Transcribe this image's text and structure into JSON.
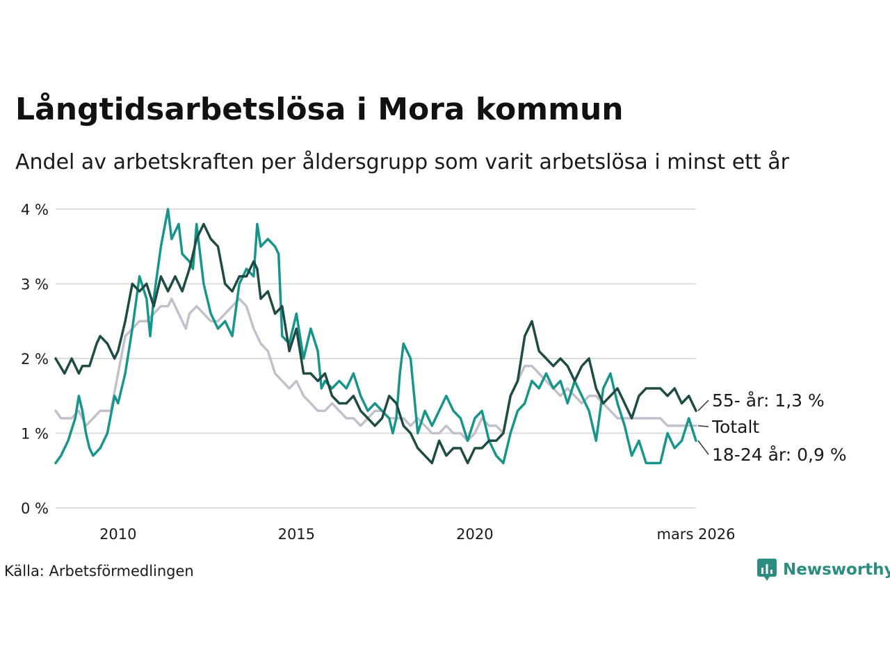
{
  "header": {
    "title": "Långtidsarbetslösa i Mora kommun",
    "subtitle": "Andel av arbetskraften per åldersgrupp som varit arbetslösa i minst ett år"
  },
  "footer": {
    "source": "Källa: Arbetsförmedlingen",
    "brand": "Newsworthy"
  },
  "colors": {
    "s55": "#1f4b45",
    "total": "#c2c0cb",
    "s1824": "#17958a",
    "grid": "#dddddd"
  },
  "chart_data": {
    "type": "line",
    "title": "Långtidsarbetslösa i Mora kommun",
    "ylabel": "",
    "xlabel": "",
    "ylim": [
      0,
      4
    ],
    "xlim": [
      2008.25,
      2026.2
    ],
    "y_ticks": [
      {
        "value": 0,
        "label": "0 %"
      },
      {
        "value": 1,
        "label": "1 %"
      },
      {
        "value": 2,
        "label": "2 %"
      },
      {
        "value": 3,
        "label": "3 %"
      },
      {
        "value": 4,
        "label": "4 %"
      }
    ],
    "x_ticks": [
      {
        "value": 2010,
        "label": "2010"
      },
      {
        "value": 2015,
        "label": "2015"
      },
      {
        "value": 2020,
        "label": "2020"
      },
      {
        "value": 2026.2,
        "label": "mars 2026"
      }
    ],
    "series": [
      {
        "name": "Totalt",
        "key": "total",
        "end_label": "Totalt",
        "points": [
          [
            2008.25,
            1.3
          ],
          [
            2008.4,
            1.2
          ],
          [
            2008.7,
            1.2
          ],
          [
            2008.9,
            1.3
          ],
          [
            2009.1,
            1.1
          ],
          [
            2009.3,
            1.2
          ],
          [
            2009.5,
            1.3
          ],
          [
            2009.8,
            1.3
          ],
          [
            2010.0,
            1.8
          ],
          [
            2010.2,
            2.3
          ],
          [
            2010.4,
            2.4
          ],
          [
            2010.6,
            2.5
          ],
          [
            2010.8,
            2.5
          ],
          [
            2011.0,
            2.6
          ],
          [
            2011.2,
            2.7
          ],
          [
            2011.4,
            2.7
          ],
          [
            2011.5,
            2.8
          ],
          [
            2011.7,
            2.6
          ],
          [
            2011.9,
            2.4
          ],
          [
            2012.0,
            2.6
          ],
          [
            2012.2,
            2.7
          ],
          [
            2012.4,
            2.6
          ],
          [
            2012.6,
            2.5
          ],
          [
            2012.8,
            2.5
          ],
          [
            2013.0,
            2.6
          ],
          [
            2013.2,
            2.7
          ],
          [
            2013.4,
            2.8
          ],
          [
            2013.6,
            2.7
          ],
          [
            2013.8,
            2.4
          ],
          [
            2014.0,
            2.2
          ],
          [
            2014.2,
            2.1
          ],
          [
            2014.4,
            1.8
          ],
          [
            2014.6,
            1.7
          ],
          [
            2014.8,
            1.6
          ],
          [
            2015.0,
            1.7
          ],
          [
            2015.2,
            1.5
          ],
          [
            2015.4,
            1.4
          ],
          [
            2015.6,
            1.3
          ],
          [
            2015.8,
            1.3
          ],
          [
            2016.0,
            1.4
          ],
          [
            2016.2,
            1.3
          ],
          [
            2016.4,
            1.2
          ],
          [
            2016.6,
            1.2
          ],
          [
            2016.8,
            1.1
          ],
          [
            2017.0,
            1.2
          ],
          [
            2017.2,
            1.3
          ],
          [
            2017.4,
            1.3
          ],
          [
            2017.6,
            1.2
          ],
          [
            2017.8,
            1.2
          ],
          [
            2018.0,
            1.2
          ],
          [
            2018.2,
            1.1
          ],
          [
            2018.4,
            1.2
          ],
          [
            2018.6,
            1.1
          ],
          [
            2018.8,
            1.0
          ],
          [
            2019.0,
            1.0
          ],
          [
            2019.2,
            1.1
          ],
          [
            2019.4,
            1.0
          ],
          [
            2019.6,
            1.0
          ],
          [
            2019.8,
            0.9
          ],
          [
            2020.0,
            1.0
          ],
          [
            2020.2,
            1.2
          ],
          [
            2020.4,
            1.1
          ],
          [
            2020.6,
            1.1
          ],
          [
            2020.8,
            1.0
          ],
          [
            2021.0,
            1.5
          ],
          [
            2021.2,
            1.7
          ],
          [
            2021.4,
            1.9
          ],
          [
            2021.6,
            1.9
          ],
          [
            2021.8,
            1.8
          ],
          [
            2022.0,
            1.7
          ],
          [
            2022.2,
            1.6
          ],
          [
            2022.4,
            1.5
          ],
          [
            2022.6,
            1.6
          ],
          [
            2022.8,
            1.5
          ],
          [
            2023.0,
            1.4
          ],
          [
            2023.2,
            1.5
          ],
          [
            2023.4,
            1.5
          ],
          [
            2023.6,
            1.4
          ],
          [
            2023.8,
            1.3
          ],
          [
            2024.0,
            1.2
          ],
          [
            2024.2,
            1.2
          ],
          [
            2024.4,
            1.2
          ],
          [
            2024.6,
            1.2
          ],
          [
            2024.8,
            1.2
          ],
          [
            2025.0,
            1.2
          ],
          [
            2025.2,
            1.2
          ],
          [
            2025.4,
            1.1
          ],
          [
            2025.6,
            1.1
          ],
          [
            2025.8,
            1.1
          ],
          [
            2026.0,
            1.1
          ],
          [
            2026.2,
            1.1
          ]
        ]
      },
      {
        "name": "18-24 år",
        "key": "s1824",
        "end_label": "18-24 år: 0,9 %",
        "points": [
          [
            2008.25,
            0.6
          ],
          [
            2008.4,
            0.7
          ],
          [
            2008.6,
            0.9
          ],
          [
            2008.8,
            1.2
          ],
          [
            2008.9,
            1.5
          ],
          [
            2009.0,
            1.3
          ],
          [
            2009.1,
            1.0
          ],
          [
            2009.2,
            0.8
          ],
          [
            2009.3,
            0.7
          ],
          [
            2009.5,
            0.8
          ],
          [
            2009.7,
            1.0
          ],
          [
            2009.9,
            1.5
          ],
          [
            2010.0,
            1.4
          ],
          [
            2010.2,
            1.8
          ],
          [
            2010.4,
            2.4
          ],
          [
            2010.6,
            3.1
          ],
          [
            2010.8,
            2.8
          ],
          [
            2010.9,
            2.3
          ],
          [
            2011.0,
            2.8
          ],
          [
            2011.2,
            3.5
          ],
          [
            2011.4,
            4.0
          ],
          [
            2011.5,
            3.6
          ],
          [
            2011.7,
            3.8
          ],
          [
            2011.8,
            3.4
          ],
          [
            2012.0,
            3.3
          ],
          [
            2012.1,
            3.2
          ],
          [
            2012.2,
            3.8
          ],
          [
            2012.4,
            3.0
          ],
          [
            2012.6,
            2.6
          ],
          [
            2012.8,
            2.4
          ],
          [
            2013.0,
            2.5
          ],
          [
            2013.2,
            2.3
          ],
          [
            2013.4,
            3.0
          ],
          [
            2013.6,
            3.2
          ],
          [
            2013.8,
            3.1
          ],
          [
            2013.9,
            3.8
          ],
          [
            2014.0,
            3.5
          ],
          [
            2014.2,
            3.6
          ],
          [
            2014.4,
            3.5
          ],
          [
            2014.5,
            3.4
          ],
          [
            2014.6,
            2.3
          ],
          [
            2014.8,
            2.2
          ],
          [
            2015.0,
            2.6
          ],
          [
            2015.2,
            2.0
          ],
          [
            2015.4,
            2.4
          ],
          [
            2015.6,
            2.1
          ],
          [
            2015.7,
            1.6
          ],
          [
            2015.8,
            1.7
          ],
          [
            2016.0,
            1.6
          ],
          [
            2016.2,
            1.7
          ],
          [
            2016.4,
            1.6
          ],
          [
            2016.6,
            1.8
          ],
          [
            2016.8,
            1.5
          ],
          [
            2017.0,
            1.3
          ],
          [
            2017.2,
            1.4
          ],
          [
            2017.4,
            1.3
          ],
          [
            2017.6,
            1.2
          ],
          [
            2017.7,
            1.0
          ],
          [
            2017.8,
            1.2
          ],
          [
            2017.9,
            1.8
          ],
          [
            2018.0,
            2.2
          ],
          [
            2018.2,
            2.0
          ],
          [
            2018.3,
            1.5
          ],
          [
            2018.4,
            1.0
          ],
          [
            2018.6,
            1.3
          ],
          [
            2018.8,
            1.1
          ],
          [
            2019.0,
            1.3
          ],
          [
            2019.2,
            1.5
          ],
          [
            2019.4,
            1.3
          ],
          [
            2019.6,
            1.2
          ],
          [
            2019.8,
            0.9
          ],
          [
            2020.0,
            1.2
          ],
          [
            2020.2,
            1.3
          ],
          [
            2020.4,
            0.9
          ],
          [
            2020.6,
            0.7
          ],
          [
            2020.8,
            0.6
          ],
          [
            2021.0,
            1.0
          ],
          [
            2021.2,
            1.3
          ],
          [
            2021.4,
            1.4
          ],
          [
            2021.6,
            1.7
          ],
          [
            2021.8,
            1.6
          ],
          [
            2022.0,
            1.8
          ],
          [
            2022.2,
            1.6
          ],
          [
            2022.4,
            1.7
          ],
          [
            2022.6,
            1.4
          ],
          [
            2022.8,
            1.7
          ],
          [
            2023.0,
            1.5
          ],
          [
            2023.2,
            1.3
          ],
          [
            2023.4,
            0.9
          ],
          [
            2023.6,
            1.6
          ],
          [
            2023.8,
            1.8
          ],
          [
            2024.0,
            1.4
          ],
          [
            2024.2,
            1.1
          ],
          [
            2024.4,
            0.7
          ],
          [
            2024.6,
            0.9
          ],
          [
            2024.8,
            0.6
          ],
          [
            2025.0,
            0.6
          ],
          [
            2025.2,
            0.6
          ],
          [
            2025.4,
            1.0
          ],
          [
            2025.6,
            0.8
          ],
          [
            2025.8,
            0.9
          ],
          [
            2026.0,
            1.2
          ],
          [
            2026.2,
            0.9
          ]
        ]
      },
      {
        "name": "55- år",
        "key": "s55",
        "end_label": "55- år: 1,3 %",
        "points": [
          [
            2008.25,
            2.0
          ],
          [
            2008.5,
            1.8
          ],
          [
            2008.7,
            2.0
          ],
          [
            2008.9,
            1.8
          ],
          [
            2009.0,
            1.9
          ],
          [
            2009.2,
            1.9
          ],
          [
            2009.4,
            2.2
          ],
          [
            2009.5,
            2.3
          ],
          [
            2009.7,
            2.2
          ],
          [
            2009.9,
            2.0
          ],
          [
            2010.0,
            2.1
          ],
          [
            2010.2,
            2.5
          ],
          [
            2010.4,
            3.0
          ],
          [
            2010.6,
            2.9
          ],
          [
            2010.8,
            3.0
          ],
          [
            2011.0,
            2.7
          ],
          [
            2011.2,
            3.1
          ],
          [
            2011.4,
            2.9
          ],
          [
            2011.6,
            3.1
          ],
          [
            2011.8,
            2.9
          ],
          [
            2012.0,
            3.2
          ],
          [
            2012.2,
            3.6
          ],
          [
            2012.4,
            3.8
          ],
          [
            2012.6,
            3.6
          ],
          [
            2012.8,
            3.5
          ],
          [
            2013.0,
            3.0
          ],
          [
            2013.2,
            2.9
          ],
          [
            2013.4,
            3.1
          ],
          [
            2013.6,
            3.1
          ],
          [
            2013.8,
            3.3
          ],
          [
            2013.9,
            3.2
          ],
          [
            2014.0,
            2.8
          ],
          [
            2014.2,
            2.9
          ],
          [
            2014.4,
            2.6
          ],
          [
            2014.6,
            2.7
          ],
          [
            2014.8,
            2.1
          ],
          [
            2015.0,
            2.4
          ],
          [
            2015.2,
            1.8
          ],
          [
            2015.4,
            1.8
          ],
          [
            2015.6,
            1.7
          ],
          [
            2015.8,
            1.8
          ],
          [
            2016.0,
            1.5
          ],
          [
            2016.2,
            1.4
          ],
          [
            2016.4,
            1.4
          ],
          [
            2016.6,
            1.5
          ],
          [
            2016.8,
            1.3
          ],
          [
            2017.0,
            1.2
          ],
          [
            2017.2,
            1.1
          ],
          [
            2017.4,
            1.2
          ],
          [
            2017.6,
            1.5
          ],
          [
            2017.8,
            1.4
          ],
          [
            2018.0,
            1.1
          ],
          [
            2018.2,
            1.0
          ],
          [
            2018.4,
            0.8
          ],
          [
            2018.6,
            0.7
          ],
          [
            2018.8,
            0.6
          ],
          [
            2019.0,
            0.9
          ],
          [
            2019.2,
            0.7
          ],
          [
            2019.4,
            0.8
          ],
          [
            2019.6,
            0.8
          ],
          [
            2019.8,
            0.6
          ],
          [
            2020.0,
            0.8
          ],
          [
            2020.2,
            0.8
          ],
          [
            2020.4,
            0.9
          ],
          [
            2020.6,
            0.9
          ],
          [
            2020.8,
            1.0
          ],
          [
            2021.0,
            1.5
          ],
          [
            2021.2,
            1.7
          ],
          [
            2021.4,
            2.3
          ],
          [
            2021.6,
            2.5
          ],
          [
            2021.8,
            2.1
          ],
          [
            2022.0,
            2.0
          ],
          [
            2022.2,
            1.9
          ],
          [
            2022.4,
            2.0
          ],
          [
            2022.6,
            1.9
          ],
          [
            2022.8,
            1.7
          ],
          [
            2023.0,
            1.9
          ],
          [
            2023.2,
            2.0
          ],
          [
            2023.4,
            1.6
          ],
          [
            2023.6,
            1.4
          ],
          [
            2023.8,
            1.5
          ],
          [
            2024.0,
            1.6
          ],
          [
            2024.2,
            1.4
          ],
          [
            2024.4,
            1.2
          ],
          [
            2024.6,
            1.5
          ],
          [
            2024.8,
            1.6
          ],
          [
            2025.0,
            1.6
          ],
          [
            2025.2,
            1.6
          ],
          [
            2025.4,
            1.5
          ],
          [
            2025.6,
            1.6
          ],
          [
            2025.8,
            1.4
          ],
          [
            2026.0,
            1.5
          ],
          [
            2026.2,
            1.3
          ]
        ]
      }
    ]
  }
}
